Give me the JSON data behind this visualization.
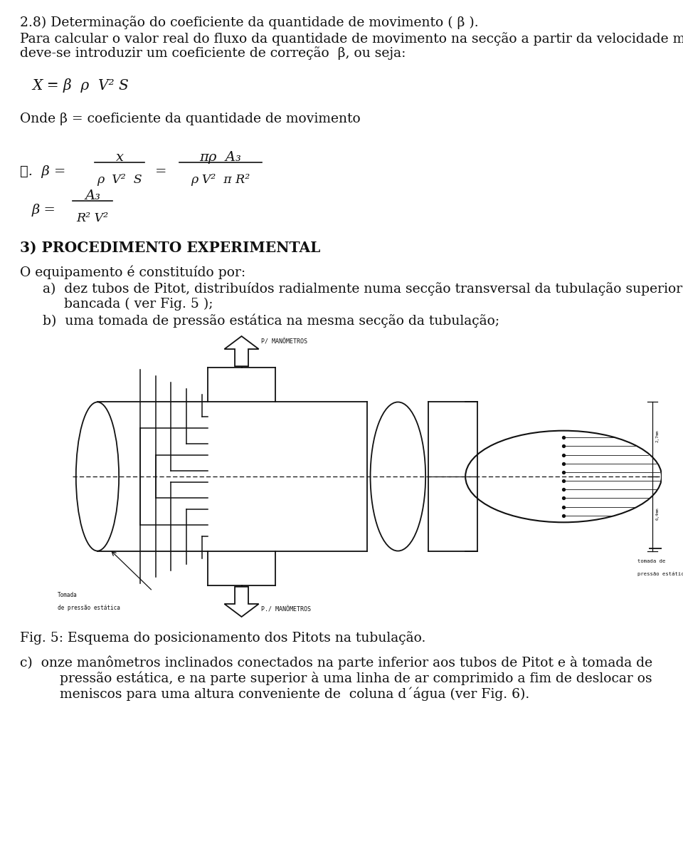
{
  "bg_color": "#ffffff",
  "title_line": "2.8) Determinação do coeficiente da quantidade de movimento ( β ).",
  "para1": "Para calcular o valor real do fluxo da quantidade de movimento na secção a partir da velocidade média,",
  "para2": "deve-se introduzir um coeficiente de correção  β, ou seja:",
  "formula1": "X = β  ρ  V² S",
  "onde_line": "Onde β = coeficiente da quantidade de movimento",
  "frac1_num": "x",
  "frac1_den": "ρ  V²  S",
  "frac2_num": "πρ  A₃",
  "frac2_den": "ρ V²  π R²",
  "frac3_num": "A₃",
  "frac3_den": "R² V²",
  "therefore_beta": "∴.  β =",
  "beta_eq": "β =",
  "section_header": "3) PROCEDIMENTO EXPERIMENTAL",
  "equip_intro": "O equipamento é constituído por:",
  "item_a1": "a)  dez tubos de Pitot, distribuídos radialmente numa secção transversal da tubulação superior da",
  "item_a2": "     bancada ( ver Fig. 5 );",
  "item_b": "b)  uma tomada de pressão estática na mesma secção da tubulação;",
  "fig_caption": "Fig. 5: Esquema do posicionamento dos Pitots na tubulação.",
  "item_c1": "c)  onze manômetros inclinados conectados na parte inferior aos tubos de Pitot e à tomada de",
  "item_c2": "    pressão estática, e na parte superior à uma linha de ar comprimido a fim de deslocar os",
  "item_c3": "    meniscos para uma altura conveniente de  coluna d´água (ver Fig. 6).",
  "diag_label_top": "P/ MANÔMETROS",
  "diag_label_bot": "P./ MANÔMETROS",
  "diag_label_static_left1": "Tomada",
  "diag_label_static_left2": "de pressão estática",
  "diag_label_static_right1": "tomada de",
  "diag_label_static_right2": "pressão estática",
  "dim_top": "2,7mm",
  "dim_bot": "6,4mm",
  "text_fontsize": 13.5,
  "text_color": "#111111",
  "line_color": "#111111",
  "diag_bg": "#e6e3db"
}
